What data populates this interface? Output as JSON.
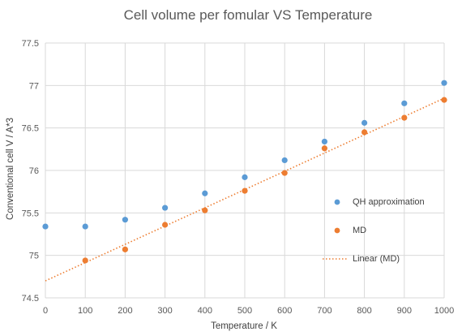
{
  "chart_data": {
    "type": "scatter",
    "title": "Cell volume per fomular VS Temperature",
    "xlabel": "Temperature / K",
    "ylabel": "Conventional cell V / A*3",
    "xlim": [
      0,
      1000
    ],
    "ylim": [
      74.5,
      77.5
    ],
    "x_ticks": [
      "0",
      "100",
      "200",
      "300",
      "400",
      "500",
      "600",
      "700",
      "800",
      "900",
      "1000"
    ],
    "y_ticks": [
      "74.5",
      "75",
      "75.5",
      "76",
      "76.5",
      "77",
      "77.5"
    ],
    "grid": true,
    "legend_position": "right",
    "series": [
      {
        "name": "QH approximation",
        "color": "#5B9BD5",
        "points": [
          [
            0,
            75.34
          ],
          [
            100,
            75.34
          ],
          [
            200,
            75.42
          ],
          [
            300,
            75.56
          ],
          [
            400,
            75.73
          ],
          [
            500,
            75.92
          ],
          [
            600,
            76.12
          ],
          [
            700,
            76.34
          ],
          [
            800,
            76.56
          ],
          [
            900,
            76.79
          ],
          [
            1000,
            77.03
          ]
        ]
      },
      {
        "name": "MD",
        "color": "#ED7D31",
        "points": [
          [
            100,
            74.94
          ],
          [
            200,
            75.07
          ],
          [
            300,
            75.36
          ],
          [
            400,
            75.53
          ],
          [
            500,
            75.76
          ],
          [
            600,
            75.97
          ],
          [
            700,
            76.26
          ],
          [
            800,
            76.45
          ],
          [
            900,
            76.62
          ],
          [
            1000,
            76.83
          ]
        ]
      }
    ],
    "trendline": {
      "name": "Linear (MD)",
      "color": "#ED7D31",
      "style": "dotted",
      "x_range": [
        0,
        1000
      ],
      "y_range": [
        74.7,
        76.85
      ]
    }
  }
}
